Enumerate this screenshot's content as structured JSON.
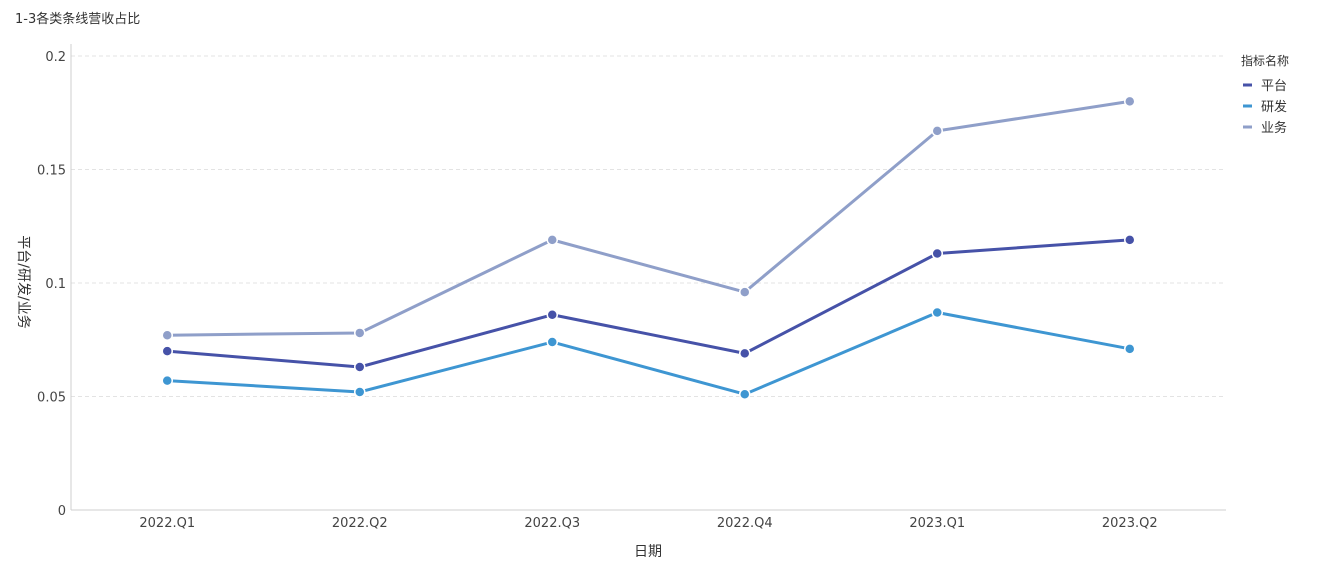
{
  "title": "1-3各类条线营收占比",
  "chart_data": {
    "type": "line",
    "categories": [
      "2022.Q1",
      "2022.Q2",
      "2022.Q3",
      "2022.Q4",
      "2023.Q1",
      "2023.Q2"
    ],
    "series": [
      {
        "name": "平台",
        "color": "#4652a8",
        "values": [
          0.07,
          0.063,
          0.086,
          0.069,
          0.113,
          0.119
        ]
      },
      {
        "name": "研发",
        "color": "#3e96d2",
        "values": [
          0.057,
          0.052,
          0.074,
          0.051,
          0.087,
          0.071
        ]
      },
      {
        "name": "业务",
        "color": "#8f9fc9",
        "values": [
          0.077,
          0.078,
          0.119,
          0.096,
          0.167,
          0.18
        ]
      }
    ],
    "xlabel": "日期",
    "ylabel": "平台/研发/业务",
    "ylim": [
      0,
      0.2
    ],
    "yticks": [
      "0",
      "0.05",
      "0.1",
      "0.15",
      "0.2"
    ],
    "legend_title": "指标名称",
    "legend_position": "right",
    "grid": true
  }
}
